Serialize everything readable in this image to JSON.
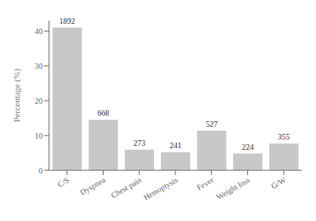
{
  "chart_data": {
    "type": "bar",
    "ylabel": "Percentage (%)",
    "categories": [
      "C/S",
      "Dyspnea",
      "Chest pain",
      "Hemoptysis",
      "Fever",
      "Weight loss",
      "G/W"
    ],
    "values": [
      41.0,
      14.5,
      5.9,
      5.2,
      11.4,
      4.85,
      7.7
    ],
    "counts": [
      1892,
      668,
      273,
      241,
      527,
      224,
      355
    ],
    "color": "#c8c8c8",
    "ylim": [
      0,
      43
    ],
    "yticks": [
      0,
      10,
      20,
      30,
      40
    ]
  }
}
